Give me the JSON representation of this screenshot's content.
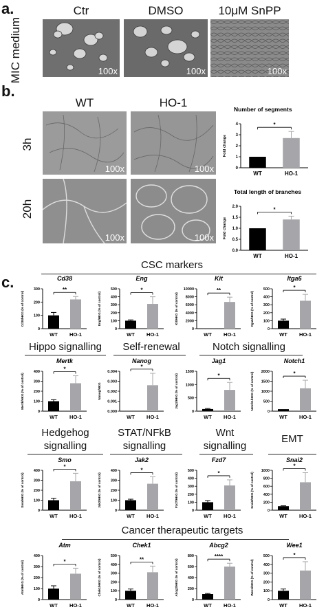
{
  "panel_a": {
    "letter": "a.",
    "row_label": "MIC medium",
    "columns": [
      "Ctr",
      "DMSO",
      "10μM SnPP"
    ],
    "magnification": "100x"
  },
  "panel_b": {
    "letter": "b.",
    "columns": [
      "WT",
      "HO-1"
    ],
    "rows": [
      "3h",
      "20h"
    ],
    "magnification": "100x"
  },
  "panel_c": {
    "letter": "c.",
    "groups": [
      "CSC markers",
      "Hippo signalling",
      "Self-renewal",
      "Notch signalling",
      "Hedgehog signalling",
      "STAT/NFkB signalling",
      "Wnt signalling",
      "EMT",
      "Cancer therapeutic targets"
    ]
  },
  "colors": {
    "wt": "#000000",
    "ho1": "#a6a6aa"
  },
  "chart_data": [
    {
      "type": "bar",
      "title": "Number of segments",
      "categories": [
        "WT",
        "HO-1"
      ],
      "values": [
        1.0,
        2.7
      ],
      "errors": [
        0,
        0.6
      ],
      "ylabel": "Fold change",
      "ylim": [
        0,
        4
      ],
      "yticks": [
        0,
        1,
        2,
        3,
        4
      ],
      "sig": "*"
    },
    {
      "type": "bar",
      "title": "Total length of branches",
      "categories": [
        "WT",
        "HO-1"
      ],
      "values": [
        1.0,
        1.4
      ],
      "errors": [
        0,
        0.15
      ],
      "ylabel": "Fold change",
      "ylim": [
        0,
        2
      ],
      "yticks": [
        0.0,
        0.5,
        1.0,
        1.5,
        2.0
      ],
      "sig": "*"
    },
    {
      "type": "bar",
      "title": "Cd38",
      "categories": [
        "WT",
        "HO-1"
      ],
      "values": [
        100,
        220
      ],
      "errors": [
        22,
        22
      ],
      "ylabel": "Cd38/HKG (% of control)",
      "ylim": [
        0,
        300
      ],
      "yticks": [
        0,
        100,
        200,
        300
      ],
      "sig": "**"
    },
    {
      "type": "bar",
      "title": "Eng",
      "categories": [
        "WT",
        "HO-1"
      ],
      "values": [
        100,
        310
      ],
      "errors": [
        10,
        90
      ],
      "ylabel": "Eng/HKG (% of control)",
      "ylim": [
        0,
        500
      ],
      "yticks": [
        0,
        100,
        200,
        300,
        400,
        500
      ],
      "sig": "*"
    },
    {
      "type": "bar",
      "title": "Kit",
      "categories": [
        "WT",
        "HO-1"
      ],
      "values": [
        20,
        6700
      ],
      "errors": [
        0,
        1200
      ],
      "ylabel": "Kit/HKG (% of control)",
      "ylim": [
        0,
        10000
      ],
      "yticks": [
        0,
        2000,
        4000,
        6000,
        8000,
        10000
      ],
      "sig": "**"
    },
    {
      "type": "bar",
      "title": "Itga6",
      "categories": [
        "WT",
        "HO-1"
      ],
      "values": [
        100,
        350
      ],
      "errors": [
        20,
        80
      ],
      "ylabel": "Itga6/HKG (% of control)",
      "ylim": [
        0,
        500
      ],
      "yticks": [
        0,
        100,
        200,
        300,
        400,
        500
      ],
      "sig": "*"
    },
    {
      "type": "bar",
      "title": "Mertk",
      "categories": [
        "WT",
        "HO-1"
      ],
      "values": [
        100,
        280
      ],
      "errors": [
        15,
        75
      ],
      "ylabel": "Mertk/HKG (% of control)",
      "ylim": [
        0,
        400
      ],
      "yticks": [
        0,
        100,
        200,
        300,
        400
      ],
      "sig": "*"
    },
    {
      "type": "bar",
      "title": "Nanog",
      "categories": [
        "WT",
        "HO-1"
      ],
      "values": [
        1e-05,
        0.0026
      ],
      "errors": [
        0,
        0.0012
      ],
      "ylabel": "Nanog/HKG",
      "ylim": [
        0,
        0.004
      ],
      "yticks": [
        0.0,
        0.001,
        0.002,
        0.003,
        0.004
      ],
      "sig": "*"
    },
    {
      "type": "bar",
      "title": "Jag1",
      "categories": [
        "WT",
        "HO-1"
      ],
      "values": [
        80,
        800
      ],
      "errors": [
        20,
        280
      ],
      "ylabel": "Jag1/HKG (% of control)",
      "ylim": [
        0,
        1500
      ],
      "yticks": [
        0,
        500,
        1000,
        1500
      ],
      "sig": "*"
    },
    {
      "type": "bar",
      "title": "Notch1",
      "categories": [
        "WT",
        "HO-1"
      ],
      "values": [
        100,
        1150
      ],
      "errors": [
        0,
        400
      ],
      "ylabel": "Notch1/HKG (% of control)",
      "ylim": [
        0,
        2000
      ],
      "yticks": [
        0,
        500,
        1000,
        1500,
        2000
      ],
      "sig": "*"
    },
    {
      "type": "bar",
      "title": "Smo",
      "categories": [
        "WT",
        "HO-1"
      ],
      "values": [
        100,
        290
      ],
      "errors": [
        20,
        80
      ],
      "ylabel": "Smo/HKG (% of control)",
      "ylim": [
        0,
        400
      ],
      "yticks": [
        0,
        100,
        200,
        300,
        400
      ],
      "sig": "*"
    },
    {
      "type": "bar",
      "title": "Jak2",
      "categories": [
        "WT",
        "HO-1"
      ],
      "values": [
        100,
        265
      ],
      "errors": [
        10,
        70
      ],
      "ylabel": "Jak2/HKG (% of control)",
      "ylim": [
        0,
        400
      ],
      "yticks": [
        0,
        100,
        200,
        300,
        400
      ],
      "sig": "*"
    },
    {
      "type": "bar",
      "title": "Fzd7",
      "categories": [
        "WT",
        "HO-1"
      ],
      "values": [
        100,
        310
      ],
      "errors": [
        20,
        70
      ],
      "ylabel": "Fzd7/HKG (% of control)",
      "ylim": [
        0,
        500
      ],
      "yticks": [
        0,
        100,
        200,
        300,
        400,
        500
      ],
      "sig": "*"
    },
    {
      "type": "bar",
      "title": "Snai2",
      "categories": [
        "WT",
        "HO-1"
      ],
      "values": [
        100,
        700
      ],
      "errors": [
        10,
        240
      ],
      "ylabel": "Snai2/HKG (% of control)",
      "ylim": [
        0,
        1000
      ],
      "yticks": [
        0,
        200,
        400,
        600,
        800,
        1000
      ],
      "sig": "*"
    },
    {
      "type": "bar",
      "title": "Atm",
      "categories": [
        "WT",
        "HO-1"
      ],
      "values": [
        100,
        235
      ],
      "errors": [
        25,
        50
      ],
      "ylabel": "Atm/HKG (% of control)",
      "ylim": [
        0,
        400
      ],
      "yticks": [
        0,
        100,
        200,
        300,
        400
      ],
      "sig": "*"
    },
    {
      "type": "bar",
      "title": "Chek1",
      "categories": [
        "WT",
        "HO-1"
      ],
      "values": [
        100,
        310
      ],
      "errors": [
        20,
        70
      ],
      "ylabel": "Chek1/HKG (% of control)",
      "ylim": [
        0,
        500
      ],
      "yticks": [
        0,
        100,
        200,
        300,
        400,
        500
      ],
      "sig": "**"
    },
    {
      "type": "bar",
      "title": "Abcg2",
      "categories": [
        "WT",
        "HO-1"
      ],
      "values": [
        100,
        600
      ],
      "errors": [
        10,
        60
      ],
      "ylabel": "Abcg2/HKG (% of control)",
      "ylim": [
        0,
        800
      ],
      "yticks": [
        0,
        200,
        400,
        600,
        800
      ],
      "sig": "****"
    },
    {
      "type": "bar",
      "title": "Wee1",
      "categories": [
        "WT",
        "HO-1"
      ],
      "values": [
        100,
        330
      ],
      "errors": [
        20,
        100
      ],
      "ylabel": "Wee1/HKG (% of control)",
      "ylim": [
        0,
        500
      ],
      "yticks": [
        0,
        100,
        200,
        300,
        400,
        500
      ],
      "sig": "*"
    }
  ]
}
